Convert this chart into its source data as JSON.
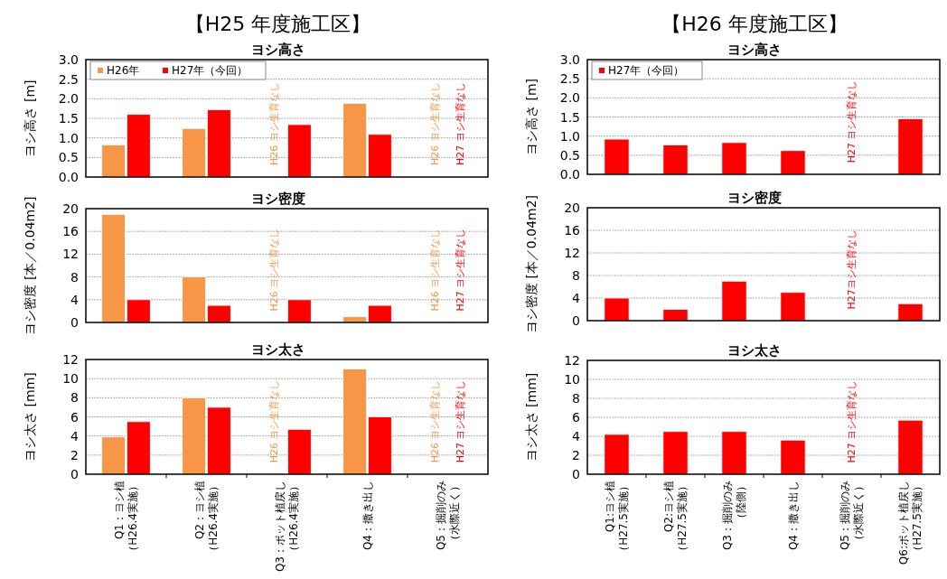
{
  "chart_data": [
    {
      "type": "bar",
      "title": "【H25 年度施工区】",
      "subtitle": "ヨシ高さ",
      "ylabel": "ヨシ高さ [m]",
      "categories": [
        null,
        null,
        null,
        null,
        null
      ],
      "series": [
        {
          "name": "H26年",
          "color": "#f79646",
          "values": [
            0.82,
            1.24,
            null,
            1.88,
            null
          ]
        },
        {
          "name": "H27年（今回）",
          "color": "#ff0000",
          "values": [
            1.6,
            1.72,
            1.34,
            1.09,
            null
          ]
        }
      ],
      "ylim": [
        0,
        3
      ],
      "yticks": [
        {
          "value": 0,
          "label": "0.0"
        },
        {
          "value": 0.5,
          "label": "0.5"
        },
        {
          "value": 1,
          "label": "1.0"
        },
        {
          "value": 1.5,
          "label": "1.5"
        },
        {
          "value": 2,
          "label": "2.0"
        },
        {
          "value": 2.5,
          "label": "2.5"
        },
        {
          "value": 3,
          "label": "3.0"
        }
      ],
      "grid": "y",
      "legend": "top left",
      "tick_labels": "y",
      "annotations": [
        "H26 ヨシ生育なし",
        "H26 ヨシ生育なし",
        "H27 ヨシ生育なし"
      ]
    },
    {
      "type": "bar",
      "title": "【H26 年度施工区】",
      "subtitle": "ヨシ高さ",
      "ylabel": "ヨシ高さ [m]",
      "categories": [
        null,
        null,
        null,
        null,
        null,
        null
      ],
      "series": [
        {
          "name": "H27年（今回）",
          "color": "#ff0000",
          "values": [
            0.92,
            0.77,
            0.83,
            0.62,
            null,
            1.45
          ]
        }
      ],
      "ylim": [
        0,
        3
      ],
      "yticks": [
        {
          "value": 0,
          "label": "0.0"
        },
        {
          "value": 0.5,
          "label": "0.5"
        },
        {
          "value": 1,
          "label": "1.0"
        },
        {
          "value": 1.5,
          "label": "1.5"
        },
        {
          "value": 2,
          "label": "2.0"
        },
        {
          "value": 2.5,
          "label": "2.5"
        },
        {
          "value": 3,
          "label": "3.0"
        }
      ],
      "grid": "y",
      "legend": "top left",
      "tick_labels": "y",
      "annotations": [
        "H27 ヨシ生育なし"
      ]
    },
    {
      "type": "bar",
      "title": "ヨシ密度",
      "ylabel": "ヨシ密度 [本／0.04m2]",
      "categories": [
        null,
        null,
        null,
        null,
        null
      ],
      "series": [
        {
          "color": "#f79646",
          "values": [
            19,
            8,
            null,
            1,
            null
          ]
        },
        {
          "color": "#ff0000",
          "values": [
            4,
            3,
            4,
            3,
            null
          ]
        }
      ],
      "ylim": [
        0,
        20
      ],
      "yticks": [
        0,
        4,
        8,
        12,
        16,
        20
      ],
      "grid": "y",
      "tick_labels": "y",
      "annotations": [
        "H26 ヨシ生育なし",
        "H26 ヨシ生育なし",
        "H27 ヨシ生育なし"
      ]
    },
    {
      "type": "bar",
      "title": "ヨシ密度",
      "ylabel": "ヨシ密度 [本／0.04m2]",
      "categories": [
        null,
        null,
        null,
        null,
        null,
        null
      ],
      "series": [
        {
          "color": "#ff0000",
          "values": [
            4,
            2,
            7,
            5,
            null,
            3
          ]
        }
      ],
      "ylim": [
        0,
        20
      ],
      "yticks": [
        0,
        4,
        8,
        12,
        16,
        20
      ],
      "grid": "y",
      "tick_labels": "y",
      "annotations": [
        "H27ヨシ生育なし"
      ]
    },
    {
      "type": "bar",
      "title": "ヨシ太さ",
      "ylabel": "ヨシ太さ [mm]",
      "categories": [
        "Q1：ヨシ植（H26.4実施）",
        "Q2：ヨシ植（H26.4実施）",
        "Q3：ポット植戻し（H26.4実施）",
        "Q4：撒き出し",
        "Q5：掘削のみ（水際近く）"
      ],
      "series": [
        {
          "color": "#f79646",
          "values": [
            3.9,
            8,
            null,
            11,
            null
          ]
        },
        {
          "color": "#ff0000",
          "values": [
            5.5,
            7,
            4.7,
            6,
            null
          ]
        }
      ],
      "ylim": [
        0,
        12
      ],
      "yticks": [
        0,
        2,
        4,
        6,
        8,
        10,
        12
      ],
      "grid": "y",
      "annotations": [
        "H26 ヨシ生育なし",
        "H26 ヨシ生育なし",
        "H27 ヨシ生育なし"
      ]
    },
    {
      "type": "bar",
      "title": "ヨシ太さ",
      "ylabel": "ヨシ太さ [mm]",
      "categories": [
        "Q1:ヨシ植（H27.5実施）",
        "Q2:ヨシ植（H27.5実施）",
        "Q3：掘削のみ（陸側）",
        "Q4：撒き出し",
        "Q5：掘削のみ（水際近く）",
        "Q6:ポット植戻し（H27.5実施）"
      ],
      "series": [
        {
          "color": "#ff0000",
          "values": [
            4.2,
            4.5,
            4.5,
            3.6,
            null,
            5.7
          ]
        }
      ],
      "ylim": [
        0,
        12
      ],
      "yticks": [
        0,
        2,
        4,
        6,
        8,
        10,
        12
      ],
      "grid": "y",
      "annotations": [
        "H27 ヨシ生育なし"
      ]
    }
  ]
}
